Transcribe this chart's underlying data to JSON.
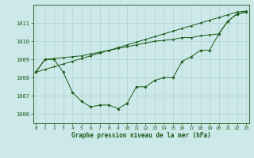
{
  "xlabel": "Graphe pression niveau de la mer (hPa)",
  "background_color": "#cce8e8",
  "line_color": "#1a5c1a",
  "grid_color": "#aacccc",
  "spine_color": "#336633",
  "series": {
    "line_zigzag": [
      1008.3,
      1009.0,
      1009.0,
      1008.3,
      1007.2,
      1006.7,
      1006.4,
      1006.5,
      1006.5,
      1006.3,
      1006.6,
      1007.5,
      1007.5,
      1007.85,
      1008.0,
      1008.0,
      1008.9,
      1009.15,
      1009.5,
      1009.5,
      1010.4,
      1011.1,
      1011.5,
      1011.6
    ],
    "line_mid": [
      1008.3,
      1009.0,
      1009.05,
      1009.1,
      1009.15,
      1009.2,
      1009.3,
      1009.4,
      1009.5,
      1009.6,
      1009.7,
      1009.8,
      1009.9,
      1010.0,
      1010.05,
      1010.1,
      1010.2,
      1010.2,
      1010.3,
      1010.35,
      1010.4,
      1011.1,
      1011.5,
      1011.6
    ],
    "line_straight": [
      1008.3,
      1008.45,
      1008.6,
      1008.75,
      1008.9,
      1009.05,
      1009.2,
      1009.35,
      1009.5,
      1009.65,
      1009.8,
      1009.95,
      1010.1,
      1010.25,
      1010.4,
      1010.55,
      1010.7,
      1010.85,
      1011.0,
      1011.15,
      1011.3,
      1011.45,
      1011.6,
      1011.65
    ]
  },
  "ylim": [
    1005.5,
    1012.0
  ],
  "yticks": [
    1006,
    1007,
    1008,
    1009,
    1010,
    1011
  ],
  "ytick_labels": [
    "1006",
    "1007",
    "1008",
    "1009",
    "1010",
    "1011"
  ],
  "xlim": [
    -0.3,
    23.3
  ],
  "xticks": [
    0,
    1,
    2,
    3,
    4,
    5,
    6,
    7,
    8,
    9,
    10,
    11,
    12,
    13,
    14,
    15,
    16,
    17,
    18,
    19,
    20,
    21,
    22,
    23
  ],
  "xtick_labels": [
    "0",
    "1",
    "2",
    "3",
    "4",
    "5",
    "6",
    "7",
    "8",
    "9",
    "10",
    "11",
    "12",
    "13",
    "14",
    "15",
    "16",
    "17",
    "18",
    "19",
    "20",
    "21",
    "22",
    "23"
  ]
}
